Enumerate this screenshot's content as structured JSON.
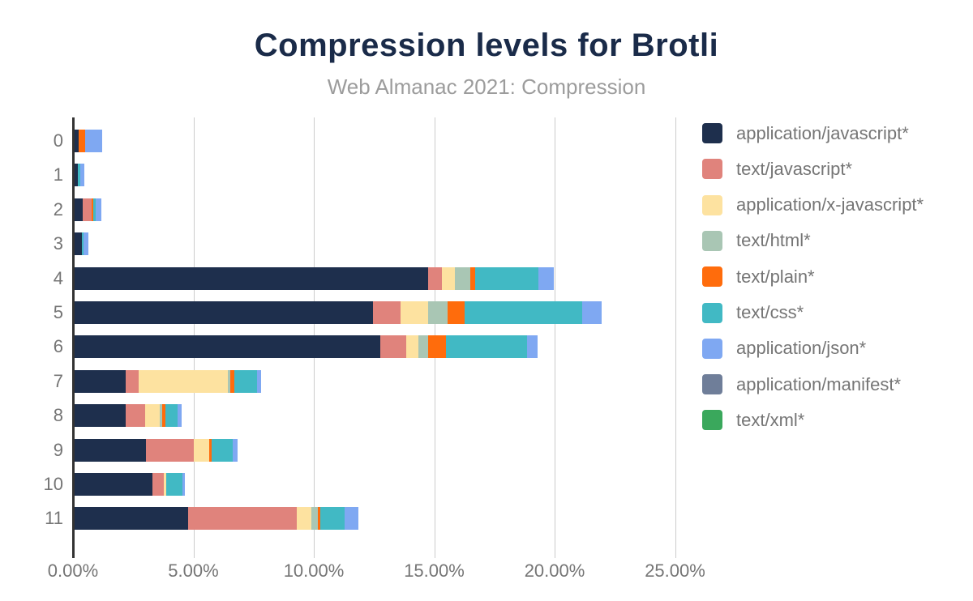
{
  "header": {
    "title": "Compression levels for Brotli",
    "subtitle": "Web Almanac 2021: Compression"
  },
  "colors": {
    "title_text": "#1a2b49",
    "subtitle_text": "#9c9c9c",
    "axis_line": "#333333",
    "gridline": "#cccccc",
    "tick_label": "#757575",
    "legend_label": "#757575",
    "background": "#ffffff"
  },
  "chart_data": {
    "type": "bar",
    "orientation": "horizontal",
    "stacked": true,
    "grid": true,
    "legend_position": "right",
    "title": "Compression levels for Brotli",
    "subtitle": "Web Almanac 2021: Compression",
    "xlabel": "",
    "ylabel": "",
    "xlim": [
      0,
      25.6
    ],
    "x_tick_values": [
      0,
      5,
      10,
      15,
      20,
      25
    ],
    "x_tick_labels": [
      "0.00%",
      "5.00%",
      "10.00%",
      "15.00%",
      "20.00%",
      "25.00%"
    ],
    "categories": [
      "0",
      "1",
      "2",
      "3",
      "4",
      "5",
      "6",
      "7",
      "8",
      "9",
      "10",
      "11"
    ],
    "series": [
      {
        "name": "application/javascript*",
        "color": "#1e2f4d",
        "values": [
          0.2,
          0.17,
          0.37,
          0.33,
          14.7,
          12.44,
          12.72,
          2.16,
          2.16,
          2.98,
          3.28,
          4.74
        ]
      },
      {
        "name": "text/javascript*",
        "color": "#e0837c",
        "values": [
          0,
          0,
          0.38,
          0,
          0.6,
          1.12,
          1.07,
          0.52,
          0.79,
          2.0,
          0.46,
          4.52
        ]
      },
      {
        "name": "application/x-javascript*",
        "color": "#fde2a0",
        "values": [
          0,
          0,
          0,
          0,
          0.53,
          1.14,
          0.51,
          3.71,
          0.62,
          0.66,
          0.09,
          0.6
        ]
      },
      {
        "name": "text/html*",
        "color": "#a9c6b4",
        "values": [
          0,
          0,
          0,
          0,
          0.65,
          0.81,
          0.4,
          0.1,
          0.09,
          0,
          0,
          0.26
        ]
      },
      {
        "name": "text/plain*",
        "color": "#ff6c0c",
        "values": [
          0.27,
          0,
          0.07,
          0,
          0.18,
          0.73,
          0.74,
          0.17,
          0.13,
          0.08,
          0,
          0.13
        ]
      },
      {
        "name": "text/css*",
        "color": "#41b9c4",
        "values": [
          0,
          0.09,
          0.08,
          0.09,
          2.63,
          4.86,
          3.38,
          0.95,
          0.51,
          0.88,
          0.67,
          1.01
        ]
      },
      {
        "name": "application/json*",
        "color": "#7fa8f2",
        "values": [
          0.71,
          0.19,
          0.26,
          0.2,
          0.64,
          0.81,
          0.45,
          0.17,
          0.18,
          0.19,
          0.11,
          0.56
        ]
      },
      {
        "name": "application/manifest*",
        "color": "#6f7e99",
        "values": [
          0,
          0,
          0,
          0,
          0,
          0,
          0,
          0,
          0,
          0,
          0,
          0
        ]
      },
      {
        "name": "text/xml*",
        "color": "#3aa85c",
        "values": [
          0,
          0,
          0,
          0,
          0,
          0,
          0,
          0,
          0,
          0,
          0,
          0
        ]
      }
    ]
  }
}
